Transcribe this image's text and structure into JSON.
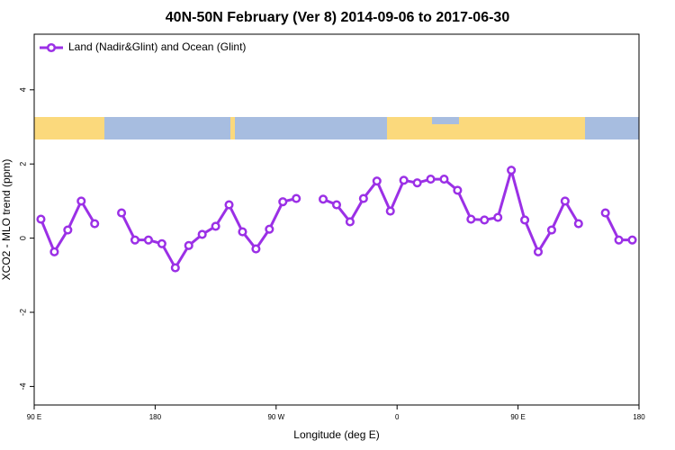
{
  "chart_data": {
    "type": "line",
    "title": "40N-50N February (Ver 8)   2014-09-06 to 2017-06-30",
    "xlabel": "Longitude (deg E)",
    "ylabel": "XCO2 - MLO trend (ppm)",
    "x": [
      -265,
      -255,
      -245,
      -235,
      -225,
      -215,
      -205,
      -195,
      -185,
      -175,
      -165,
      -155,
      -145,
      -135,
      -125,
      -115,
      -105,
      -95,
      -85,
      -75,
      -65,
      -55,
      -45,
      -35,
      -25,
      -15,
      -5,
      5,
      15,
      25,
      35,
      45,
      55,
      65,
      75,
      85,
      95,
      105,
      115,
      125,
      135,
      145,
      155,
      165,
      175
    ],
    "series": [
      {
        "name": "Land (Nadir&Glint) and Ocean (Glint)",
        "color": "#9b30e6",
        "values": [
          0.51,
          -0.37,
          0.22,
          1.0,
          0.39,
          null,
          0.68,
          -0.05,
          -0.05,
          -0.15,
          -0.8,
          -0.2,
          0.1,
          0.32,
          0.9,
          0.17,
          -0.29,
          0.24,
          0.98,
          1.07,
          null,
          1.05,
          0.9,
          0.44,
          1.07,
          1.54,
          0.73,
          1.56,
          1.49,
          1.59,
          1.59,
          1.29,
          0.51,
          0.49,
          0.56,
          1.83,
          0.49,
          -0.37,
          0.22,
          1.0,
          0.39,
          null,
          0.68,
          -0.05,
          -0.05
        ]
      }
    ],
    "xlim": [
      -270,
      180
    ],
    "xticks": [
      {
        "value": -270,
        "label": "90 E"
      },
      {
        "value": -180,
        "label": "180"
      },
      {
        "value": -90,
        "label": "90 W"
      },
      0,
      {
        "value": 90,
        "label": "90 E"
      },
      {
        "value": 180,
        "label": "180"
      }
    ],
    "ylim": [
      -4.5,
      5.5
    ],
    "yticks": [
      -4,
      -2,
      0,
      2,
      4
    ],
    "legend": "top-left"
  }
}
